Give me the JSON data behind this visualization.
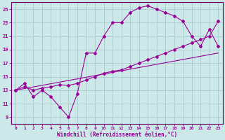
{
  "background_color": "#cce8e8",
  "grid_color": "#aacccc",
  "line_color": "#990099",
  "spine_color": "#660066",
  "xlim": [
    -0.5,
    23.5
  ],
  "ylim": [
    8,
    26
  ],
  "xticks": [
    0,
    1,
    2,
    3,
    4,
    5,
    6,
    7,
    8,
    9,
    10,
    11,
    12,
    13,
    14,
    15,
    16,
    17,
    18,
    19,
    20,
    21,
    22,
    23
  ],
  "yticks": [
    9,
    11,
    13,
    15,
    17,
    19,
    21,
    23,
    25
  ],
  "xlabel": "Windchill (Refroidissement éolien,°C)",
  "series1_x": [
    0,
    1,
    2,
    3,
    4,
    5,
    6,
    7,
    8,
    9,
    10,
    11,
    12,
    13,
    14,
    15,
    16,
    17,
    18,
    19,
    20,
    21,
    22,
    23
  ],
  "series1_y": [
    13,
    14,
    12,
    13,
    12,
    10.5,
    9,
    12.5,
    18.5,
    18.5,
    21,
    23,
    23,
    24.5,
    25.2,
    25.5,
    25,
    24.5,
    24,
    23.2,
    21,
    19.5,
    22,
    19.5
  ],
  "series2_x": [
    0,
    23
  ],
  "series2_y": [
    13,
    18.5
  ],
  "series3_x": [
    0,
    1,
    2,
    3,
    4,
    5,
    6,
    7,
    8,
    9,
    10,
    11,
    12,
    13,
    14,
    15,
    16,
    17,
    18,
    19,
    20,
    21,
    22,
    23
  ],
  "series3_y": [
    13,
    13.5,
    13,
    13.3,
    13.5,
    13.8,
    13.7,
    14,
    14.5,
    15,
    15.5,
    15.8,
    16,
    16.5,
    17,
    17.5,
    18,
    18.5,
    19,
    19.5,
    20,
    20.5,
    21,
    23.2
  ]
}
